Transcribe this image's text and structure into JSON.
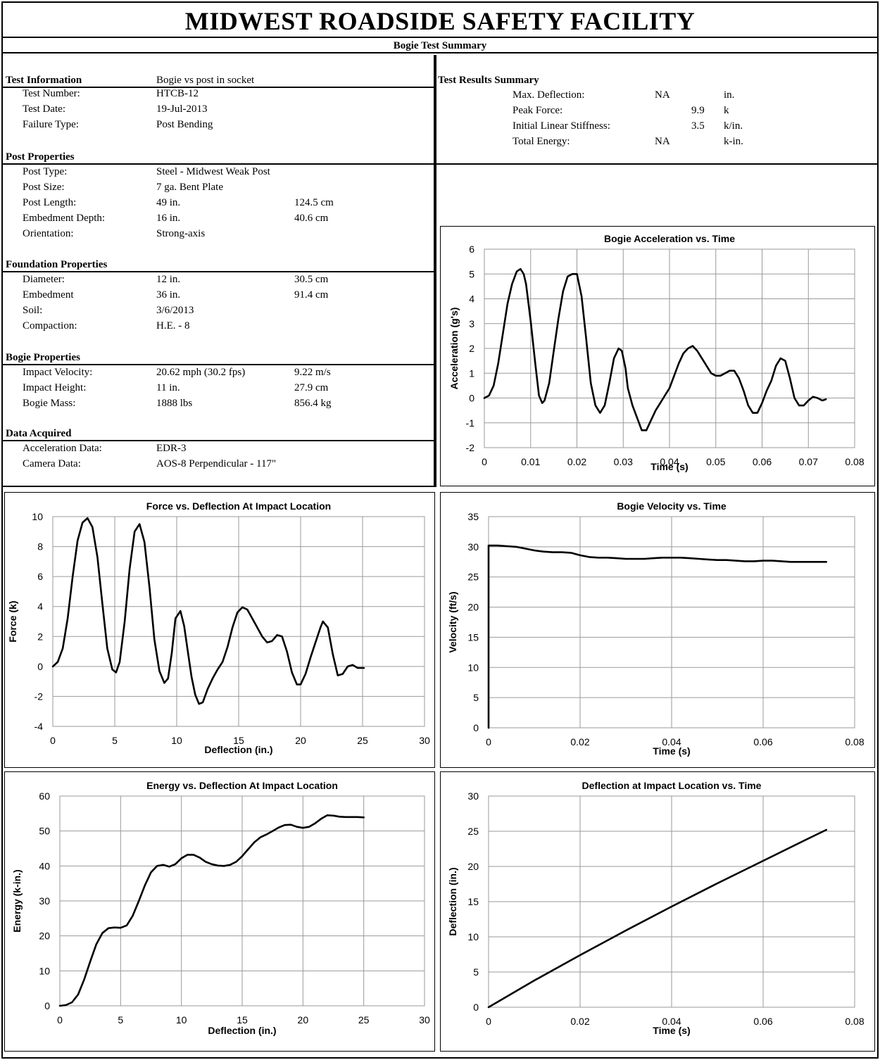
{
  "header": {
    "title": "MIDWEST ROADSIDE SAFETY FACILITY",
    "subtitle": "Bogie Test Summary"
  },
  "test_information": {
    "heading": "Test Information",
    "heading_value": "Bogie vs post in socket",
    "rows": [
      {
        "label": "Test Number:",
        "value": "HTCB-12"
      },
      {
        "label": "Test Date:",
        "value": "19-Jul-2013"
      },
      {
        "label": "Failure Type:",
        "value": "Post Bending"
      }
    ]
  },
  "post_properties": {
    "heading": "Post Properties",
    "rows": [
      {
        "label": "Post Type:",
        "value": "Steel - Midwest Weak Post",
        "metric": ""
      },
      {
        "label": "Post Size:",
        "value": "7 ga. Bent Plate",
        "metric": ""
      },
      {
        "label": "Post Length:",
        "value": "49 in.",
        "metric": "124.5 cm"
      },
      {
        "label": "Embedment Depth:",
        "value": "16 in.",
        "metric": "40.6 cm"
      },
      {
        "label": "Orientation:",
        "value": "Strong-axis",
        "metric": ""
      }
    ]
  },
  "foundation_properties": {
    "heading": "Foundation Properties",
    "rows": [
      {
        "label": "Diameter:",
        "value": "12 in.",
        "metric": "30.5 cm"
      },
      {
        "label": "Embedment",
        "value": "36 in.",
        "metric": "91.4 cm"
      },
      {
        "label": "Soil:",
        "value": "3/6/2013",
        "metric": ""
      },
      {
        "label": "Compaction:",
        "value": "H.E. - 8",
        "metric": ""
      }
    ]
  },
  "bogie_properties": {
    "heading": "Bogie Properties",
    "rows": [
      {
        "label": "Impact Velocity:",
        "value": "20.62 mph  (30.2 fps)",
        "metric": "9.22 m/s"
      },
      {
        "label": "Impact Height:",
        "value": "11 in.",
        "metric": "27.9 cm"
      },
      {
        "label": "Bogie Mass:",
        "value": "1888 lbs",
        "metric": "856.4 kg"
      }
    ]
  },
  "data_acquired": {
    "heading": "Data Acquired",
    "rows": [
      {
        "label": "Acceleration Data:",
        "value": "EDR-3"
      },
      {
        "label": "Camera Data:",
        "value": "AOS-8 Perpendicular - 117\""
      }
    ]
  },
  "test_results": {
    "heading": "Test Results Summary",
    "rows": [
      {
        "label": "Max. Deflection:",
        "value": "NA",
        "unit": "in."
      },
      {
        "label": "Peak Force:",
        "value": "9.9",
        "unit": "k"
      },
      {
        "label": "Initial Linear Stiffness:",
        "value": "3.5",
        "unit": "k/in."
      },
      {
        "label": "Total Energy:",
        "value": "NA",
        "unit": "k-in."
      }
    ]
  },
  "chart_data": [
    {
      "id": "accel",
      "type": "line",
      "title": "Bogie Acceleration vs. Time",
      "xlabel": "Time (s)",
      "ylabel": "Acceleration (g's)",
      "xlim": [
        0,
        0.08
      ],
      "ylim": [
        -2,
        6
      ],
      "xticks": [
        "0",
        "0.01",
        "0.02",
        "0.03",
        "0.04",
        "0.05",
        "0.06",
        "0.07",
        "0.08"
      ],
      "yticks": [
        "-2",
        "-1",
        "0",
        "1",
        "2",
        "3",
        "4",
        "5",
        "6"
      ],
      "grid": true,
      "series": [
        {
          "x": [
            0,
            0.001,
            0.002,
            0.003,
            0.004,
            0.005,
            0.006,
            0.007,
            0.0078,
            0.0085,
            0.009,
            0.01,
            0.011,
            0.0118,
            0.0125,
            0.013,
            0.014,
            0.015,
            0.016,
            0.017,
            0.018,
            0.019,
            0.02,
            0.021,
            0.022,
            0.023,
            0.024,
            0.025,
            0.026,
            0.027,
            0.028,
            0.029,
            0.0297,
            0.0305,
            0.031,
            0.032,
            0.033,
            0.034,
            0.035,
            0.036,
            0.037,
            0.038,
            0.039,
            0.04,
            0.041,
            0.042,
            0.043,
            0.044,
            0.045,
            0.046,
            0.047,
            0.048,
            0.049,
            0.05,
            0.051,
            0.052,
            0.053,
            0.054,
            0.055,
            0.056,
            0.057,
            0.058,
            0.059,
            0.06,
            0.061,
            0.062,
            0.063,
            0.064,
            0.065,
            0.066,
            0.067,
            0.068,
            0.069,
            0.07,
            0.071,
            0.072,
            0.073,
            0.0738
          ],
          "y": [
            0,
            0.1,
            0.5,
            1.4,
            2.6,
            3.8,
            4.6,
            5.1,
            5.2,
            5.0,
            4.6,
            3.1,
            1.4,
            0.1,
            -0.2,
            -0.1,
            0.6,
            1.9,
            3.2,
            4.3,
            4.9,
            5.0,
            5.0,
            4.1,
            2.4,
            0.6,
            -0.3,
            -0.6,
            -0.3,
            0.6,
            1.6,
            2.0,
            1.9,
            1.2,
            0.4,
            -0.3,
            -0.8,
            -1.3,
            -1.3,
            -0.9,
            -0.5,
            -0.2,
            0.1,
            0.4,
            0.9,
            1.4,
            1.8,
            2.0,
            2.1,
            1.9,
            1.6,
            1.3,
            1.0,
            0.9,
            0.9,
            1.0,
            1.1,
            1.1,
            0.8,
            0.3,
            -0.3,
            -0.6,
            -0.6,
            -0.2,
            0.3,
            0.7,
            1.3,
            1.6,
            1.5,
            0.8,
            0,
            -0.3,
            -0.3,
            -0.1,
            0.05,
            0,
            -0.1,
            -0.05
          ]
        }
      ]
    },
    {
      "id": "force",
      "type": "line",
      "title": "Force vs. Deflection At Impact  Location",
      "xlabel": "Deflection (in.)",
      "ylabel": "Force (k)",
      "xlim": [
        0,
        30
      ],
      "ylim": [
        -4,
        10
      ],
      "xticks": [
        "0",
        "5",
        "10",
        "15",
        "20",
        "25",
        "30"
      ],
      "yticks": [
        "-4",
        "-2",
        "0",
        "2",
        "4",
        "6",
        "8",
        "10"
      ],
      "grid": true,
      "series": [
        {
          "x": [
            0,
            0.4,
            0.8,
            1.2,
            1.6,
            2,
            2.4,
            2.8,
            3.2,
            3.6,
            4,
            4.4,
            4.8,
            5.1,
            5.4,
            5.8,
            6.2,
            6.6,
            7,
            7.4,
            7.8,
            8.2,
            8.6,
            9,
            9.3,
            9.6,
            9.9,
            10.3,
            10.6,
            10.9,
            11.2,
            11.5,
            11.8,
            12.1,
            12.5,
            12.9,
            13.3,
            13.7,
            14.1,
            14.5,
            14.9,
            15.3,
            15.7,
            16.1,
            16.5,
            16.9,
            17.3,
            17.7,
            18.1,
            18.5,
            18.9,
            19.3,
            19.7,
            20,
            20.4,
            20.8,
            21.2,
            21.6,
            21.8,
            22.2,
            22.6,
            23,
            23.4,
            23.8,
            24.2,
            24.6,
            25,
            25.1
          ],
          "y": [
            0,
            0.3,
            1.2,
            3.2,
            6.0,
            8.4,
            9.6,
            9.9,
            9.3,
            7.3,
            4.2,
            1.2,
            -0.2,
            -0.4,
            0.3,
            3.0,
            6.5,
            9.0,
            9.5,
            8.3,
            5.3,
            1.8,
            -0.3,
            -1.1,
            -0.8,
            0.9,
            3.2,
            3.7,
            2.7,
            1.0,
            -0.7,
            -1.9,
            -2.5,
            -2.4,
            -1.5,
            -0.8,
            -0.2,
            0.3,
            1.3,
            2.6,
            3.6,
            3.95,
            3.8,
            3.2,
            2.6,
            2.0,
            1.6,
            1.7,
            2.1,
            2.0,
            1.0,
            -0.4,
            -1.2,
            -1.2,
            -0.5,
            0.6,
            1.6,
            2.6,
            3.0,
            2.6,
            0.8,
            -0.6,
            -0.5,
            0,
            0.1,
            -0.1,
            -0.1,
            -0.1
          ]
        }
      ]
    },
    {
      "id": "velocity",
      "type": "line",
      "title": "Bogie Velocity vs. Time",
      "xlabel": "Time (s)",
      "ylabel": "Velocity (ft/s)",
      "xlim": [
        0,
        0.08
      ],
      "ylim": [
        0,
        35
      ],
      "xticks": [
        "0",
        "0.02",
        "0.04",
        "0.06",
        "0.08"
      ],
      "yticks": [
        "0",
        "5",
        "10",
        "15",
        "20",
        "25",
        "30",
        "35"
      ],
      "grid": true,
      "series": [
        {
          "x": [
            0,
            0,
            0.002,
            0.004,
            0.006,
            0.008,
            0.01,
            0.012,
            0.014,
            0.016,
            0.018,
            0.02,
            0.022,
            0.024,
            0.026,
            0.028,
            0.03,
            0.032,
            0.034,
            0.036,
            0.038,
            0.04,
            0.042,
            0.044,
            0.046,
            0.048,
            0.05,
            0.052,
            0.054,
            0.056,
            0.058,
            0.06,
            0.062,
            0.064,
            0.066,
            0.068,
            0.07,
            0.072,
            0.0738
          ],
          "y": [
            0,
            30.2,
            30.2,
            30.1,
            30.0,
            29.7,
            29.4,
            29.2,
            29.1,
            29.1,
            29.0,
            28.6,
            28.3,
            28.2,
            28.2,
            28.1,
            28.0,
            28.0,
            28.0,
            28.1,
            28.2,
            28.2,
            28.2,
            28.1,
            28.0,
            27.9,
            27.8,
            27.8,
            27.7,
            27.6,
            27.6,
            27.7,
            27.7,
            27.6,
            27.5,
            27.5,
            27.5,
            27.5,
            27.5
          ]
        }
      ]
    },
    {
      "id": "energy",
      "type": "line",
      "title": "Energy vs. Deflection At Impact Location",
      "xlabel": "Deflection (in.)",
      "ylabel": "Energy (k-in.)",
      "xlim": [
        0,
        30
      ],
      "ylim": [
        0,
        60
      ],
      "xticks": [
        "0",
        "5",
        "10",
        "15",
        "20",
        "25",
        "30"
      ],
      "yticks": [
        "0",
        "10",
        "20",
        "30",
        "40",
        "50",
        "60"
      ],
      "grid": true,
      "series": [
        {
          "x": [
            0,
            0.5,
            1,
            1.5,
            2,
            2.5,
            3,
            3.5,
            4,
            4.5,
            5,
            5.5,
            6,
            6.5,
            7,
            7.5,
            8,
            8.5,
            9,
            9.5,
            10,
            10.5,
            11,
            11.5,
            12,
            12.5,
            13,
            13.5,
            14,
            14.5,
            15,
            15.5,
            16,
            16.5,
            17,
            17.5,
            18,
            18.5,
            19,
            19.5,
            20,
            20.5,
            21,
            21.5,
            22,
            22.5,
            23,
            23.5,
            24,
            24.5,
            25
          ],
          "y": [
            0,
            0.2,
            1.0,
            3.2,
            7.5,
            12.7,
            17.6,
            20.8,
            22.2,
            22.4,
            22.3,
            23.0,
            25.8,
            30.0,
            34.5,
            38.2,
            40.0,
            40.3,
            39.8,
            40.5,
            42.2,
            43.2,
            43.2,
            42.4,
            41.2,
            40.5,
            40.1,
            40.0,
            40.3,
            41.2,
            42.8,
            44.8,
            46.8,
            48.2,
            49.0,
            50.0,
            51.0,
            51.7,
            51.8,
            51.2,
            50.9,
            51.2,
            52.2,
            53.5,
            54.5,
            54.4,
            54.1,
            54.0,
            54.0,
            54.0,
            53.9
          ]
        }
      ]
    },
    {
      "id": "deflection",
      "type": "line",
      "title": "Deflection at Impact  Location vs. Time",
      "xlabel": "Time (s)",
      "ylabel": "Deflection (in.)",
      "xlim": [
        0,
        0.08
      ],
      "ylim": [
        0,
        30
      ],
      "xticks": [
        "0",
        "0.02",
        "0.04",
        "0.06",
        "0.08"
      ],
      "yticks": [
        "0",
        "5",
        "10",
        "15",
        "20",
        "25",
        "30"
      ],
      "grid": true,
      "series": [
        {
          "x": [
            0,
            0.005,
            0.01,
            0.02,
            0.03,
            0.04,
            0.05,
            0.06,
            0.07,
            0.0738
          ],
          "y": [
            0,
            1.9,
            3.8,
            7.4,
            10.9,
            14.3,
            17.6,
            20.8,
            24.0,
            25.2
          ]
        }
      ]
    }
  ]
}
